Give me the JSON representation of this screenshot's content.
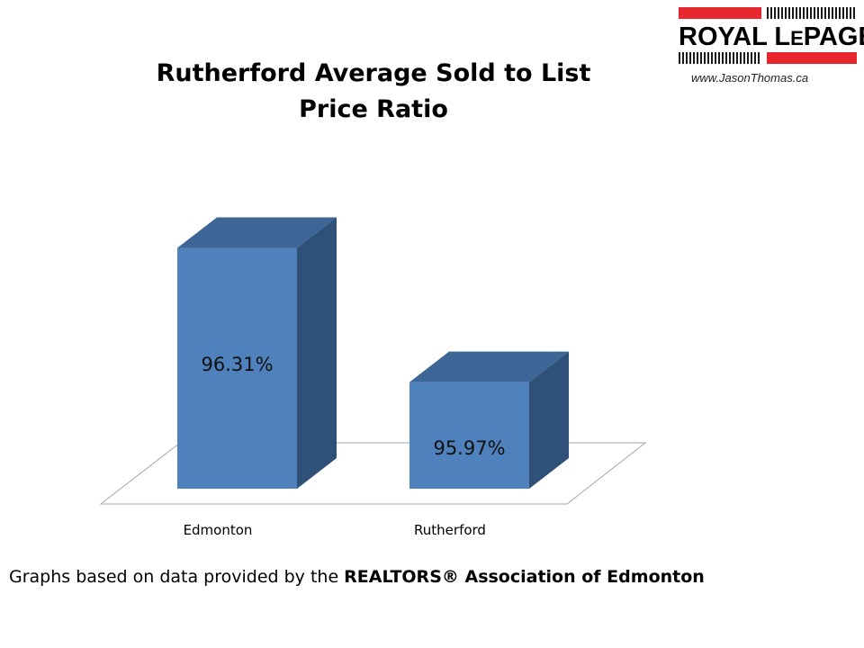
{
  "chart_data": {
    "type": "bar",
    "title": "Rutherford Average Sold to List Price Ratio",
    "categories": [
      "Edmonton",
      "Rutherford"
    ],
    "values": [
      96.31,
      95.97
    ],
    "data_labels": [
      "96.31%",
      "95.97%"
    ],
    "ylim": [
      95.7,
      96.35
    ],
    "grid": false,
    "legend": "none",
    "colors": {
      "front": "#4f81bd",
      "top": "#3d6595",
      "side": "#2f5079",
      "floor_stroke": "#a6a6a6"
    }
  },
  "logo": {
    "brand": "ROYAL LEPAGE",
    "url": "www.JasonThomas.ca",
    "colors": {
      "red": "#e8262e",
      "ticks": "#1a1a1a"
    }
  },
  "footer": {
    "prefix": "Graphs based on data provided by the ",
    "emphasis": "REALTORS® Association of Edmonton"
  }
}
